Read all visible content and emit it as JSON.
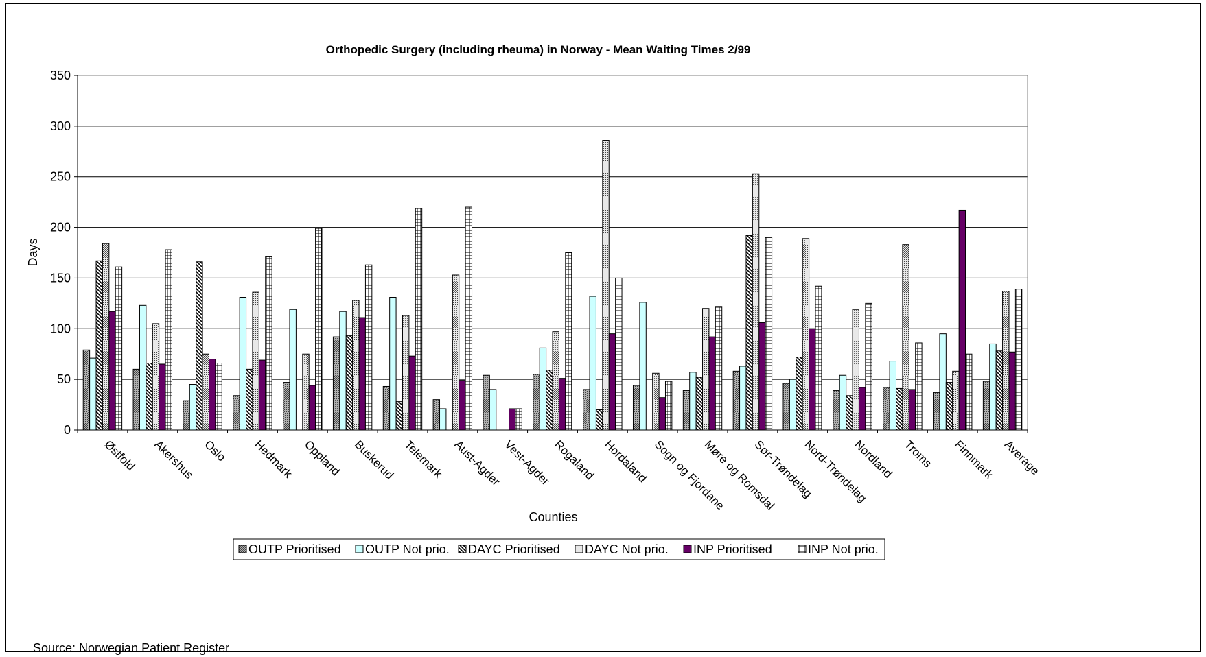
{
  "chart_data": {
    "type": "bar",
    "title": "Orthopedic Surgery (including rheuma) in Norway - Mean Waiting Times 2/99",
    "xlabel": "Counties",
    "ylabel": "Days",
    "ylim": [
      0,
      350
    ],
    "yticks": [
      0,
      50,
      100,
      150,
      200,
      250,
      300,
      350
    ],
    "grid": true,
    "legend_position": "bottom",
    "categories": [
      "Østfold",
      "Akershus",
      "Oslo",
      "Hedmark",
      "Oppland",
      "Buskerud",
      "Telemark",
      "Aust-Agder",
      "Vest-Agder",
      "Rogaland",
      "Hordaland",
      "Sogn og Fjordane",
      "Møre og Romsdal",
      "Sør-Trøndelag",
      "Nord-Trøndelag",
      "Nordland",
      "Troms",
      "Finnmark",
      "Average"
    ],
    "series": [
      {
        "name": "OUTP Prioritised",
        "pattern": "dense-dots",
        "color": "#808080",
        "values": [
          79,
          60,
          29,
          34,
          47,
          92,
          43,
          30,
          54,
          55,
          40,
          44,
          39,
          58,
          46,
          39,
          42,
          37,
          48
        ]
      },
      {
        "name": "OUTP Not prio.",
        "pattern": "solid",
        "color": "#CCFFFF",
        "values": [
          71,
          123,
          45,
          131,
          119,
          117,
          131,
          21,
          40,
          81,
          132,
          126,
          57,
          63,
          50,
          54,
          68,
          95,
          85
        ]
      },
      {
        "name": "DAYC Prioritised",
        "pattern": "diagonal",
        "color": "#000000",
        "values": [
          167,
          66,
          166,
          60,
          0,
          93,
          28,
          0,
          0,
          59,
          20,
          0,
          52,
          192,
          72,
          34,
          41,
          47,
          78
        ]
      },
      {
        "name": "DAYC Not prio.",
        "pattern": "sparse-dots",
        "color": "#999999",
        "values": [
          184,
          105,
          75,
          136,
          75,
          128,
          113,
          153,
          0,
          97,
          286,
          56,
          120,
          253,
          189,
          119,
          183,
          58,
          137
        ]
      },
      {
        "name": "INP Prioritised",
        "pattern": "solid",
        "color": "#660066",
        "values": [
          117,
          65,
          70,
          69,
          44,
          111,
          73,
          49,
          21,
          51,
          95,
          32,
          92,
          106,
          100,
          42,
          40,
          217,
          77
        ]
      },
      {
        "name": "INP Not prio.",
        "pattern": "grid",
        "color": "#000000",
        "values": [
          161,
          178,
          66,
          171,
          199,
          163,
          219,
          220,
          21,
          175,
          150,
          48,
          122,
          190,
          142,
          125,
          86,
          75,
          139
        ]
      }
    ]
  },
  "source_note": "Source: Norwegian Patient Register."
}
